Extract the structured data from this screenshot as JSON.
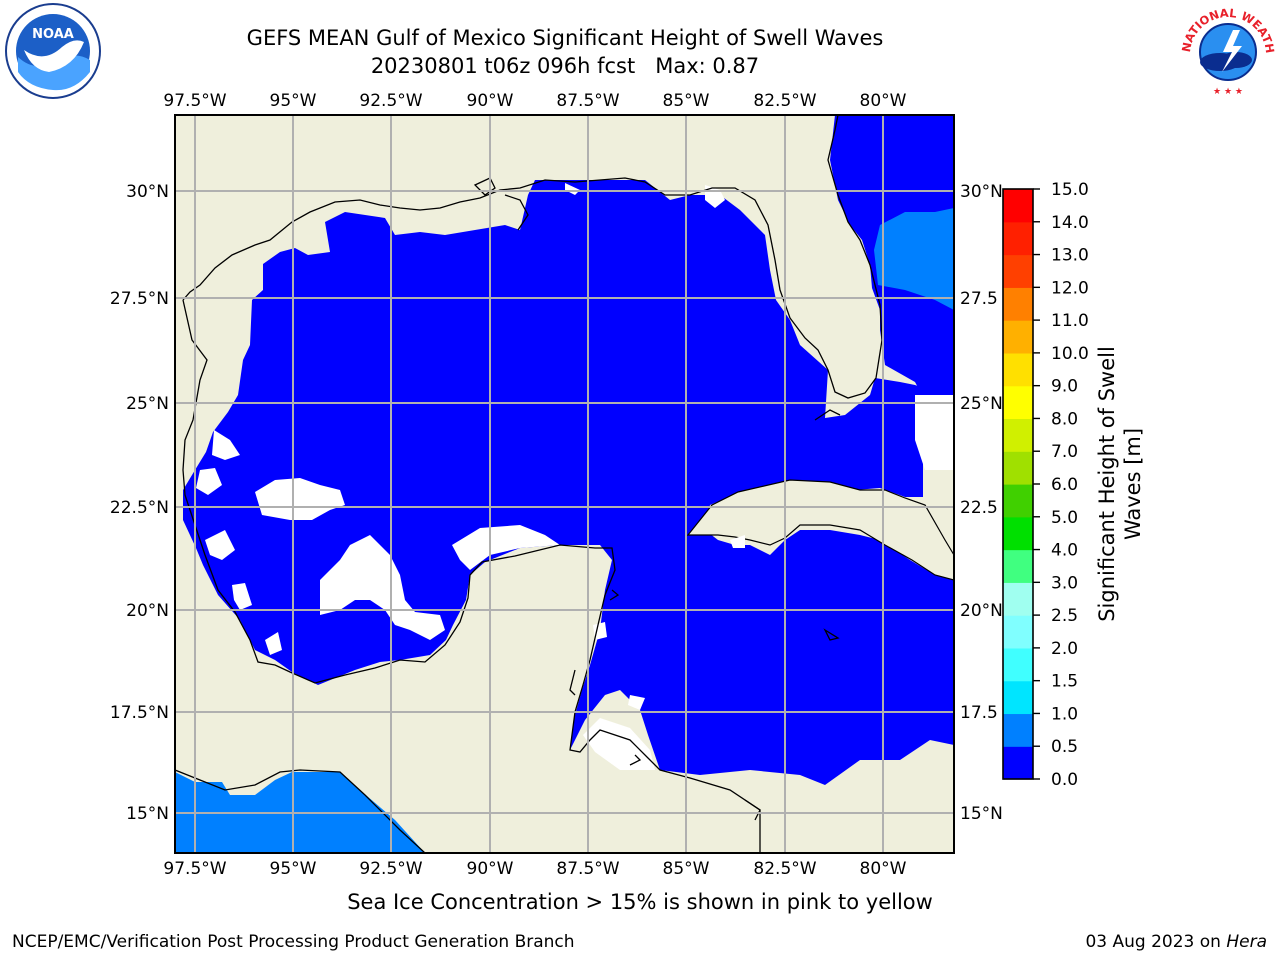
{
  "header": {
    "title": "GEFS MEAN Gulf of Mexico Significant Height of Swell Waves",
    "subtitle": "20230801 t06z 096h fcst   Max: 0.87"
  },
  "map": {
    "lon_ticks": [
      "97.5°W",
      "95°W",
      "92.5°W",
      "90°W",
      "87.5°W",
      "85°W",
      "82.5°W",
      "80°W"
    ],
    "lat_ticks_left": [
      "30°N",
      "27.5°N",
      "25°N",
      "22.5°N",
      "20°N",
      "17.5°N",
      "15°N"
    ],
    "lat_ticks_right": [
      "30°N",
      "27.5",
      "25°N",
      "22.5",
      "20°N",
      "17.5",
      "15°N"
    ],
    "colors": {
      "land": "#efefdc",
      "swell_low": "#0000ff",
      "swell_mid": "#0080ff",
      "grid": "#b0b0b0"
    }
  },
  "colorbar": {
    "label_line1": "Significant Height of Swell",
    "label_line2": "Waves [m]",
    "ticks": [
      "0.0",
      "0.5",
      "1.0",
      "1.5",
      "2.0",
      "2.5",
      "3.0",
      "4.0",
      "5.0",
      "6.0",
      "7.0",
      "8.0",
      "9.0",
      "10.0",
      "11.0",
      "12.0",
      "13.0",
      "14.0",
      "15.0"
    ],
    "colors": [
      "#0000ff",
      "#0080ff",
      "#00e5ff",
      "#40ffff",
      "#80ffff",
      "#a0fff0",
      "#40ff80",
      "#00e000",
      "#40d000",
      "#a0e000",
      "#d0f000",
      "#ffff00",
      "#ffe000",
      "#ffb000",
      "#ff8000",
      "#ff4000",
      "#ff2000",
      "#ff0000"
    ]
  },
  "footer": {
    "note": "Sea Ice Concentration > 15% is shown in pink to yellow",
    "credit": "NCEP/EMC/Verification Post Processing Product Generation Branch",
    "date": "03 Aug 2023",
    "on": "on",
    "host": "Hera"
  },
  "logos": {
    "left": "NOAA",
    "right_outer": "NATIONAL WEATHER SERVICE"
  }
}
